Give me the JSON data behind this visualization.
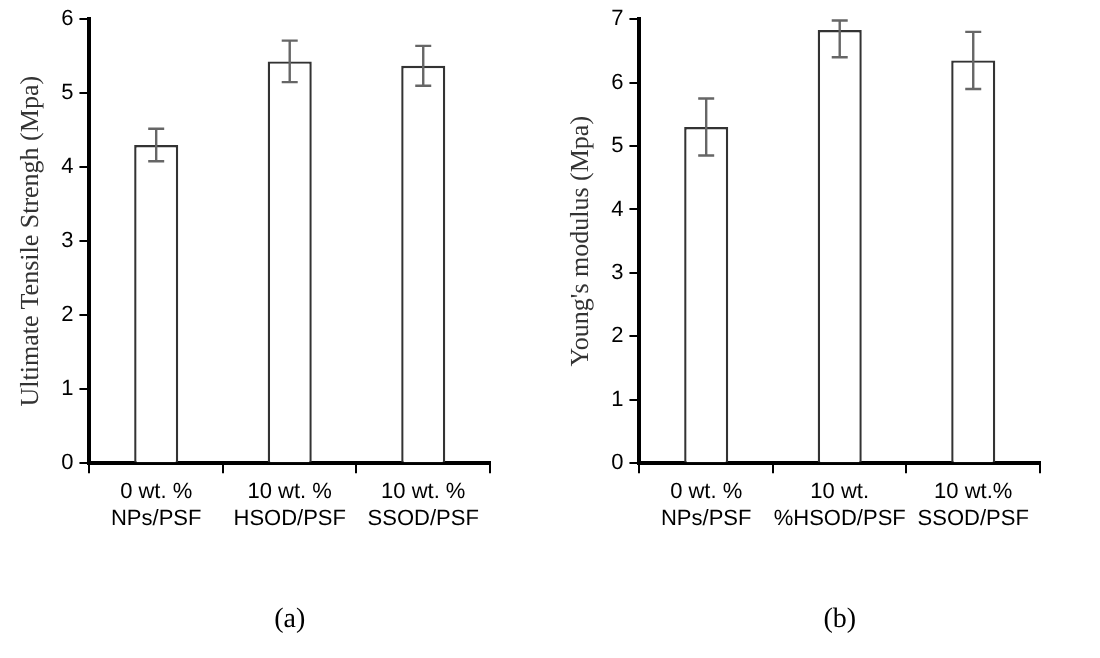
{
  "chart_data": [
    {
      "type": "bar",
      "ylabel": "Ultimate Tensile Strengh (Mpa)",
      "categories": [
        "0 wt. %\nNPs/PSF",
        "10 wt. %\nHSOD/PSF",
        "10 wt. %\nSSOD/PSF"
      ],
      "values": [
        4.3,
        5.43,
        5.37
      ],
      "errors": [
        0.22,
        0.28,
        0.27
      ],
      "color": "#ffffff",
      "ylim": [
        0,
        6
      ],
      "yticks": [
        0,
        1,
        2,
        3,
        4,
        5,
        6
      ],
      "annotations": [
        "(a)"
      ]
    },
    {
      "type": "bar",
      "ylabel": "Young's modulus (Mpa)",
      "categories": [
        "0 wt. %\nNPs/PSF",
        "10 wt.\n%HSOD/PSF",
        "10 wt.%\nSSOD/PSF"
      ],
      "values": [
        5.3,
        6.83,
        6.35
      ],
      "errors": [
        0.45,
        [
          6.4,
          6.98
        ],
        0.45
      ],
      "color": "#ffffff",
      "ylim": [
        0,
        7
      ],
      "yticks": [
        0,
        1,
        2,
        3,
        4,
        5,
        6,
        7
      ],
      "annotations": [
        "(b)"
      ]
    }
  ]
}
